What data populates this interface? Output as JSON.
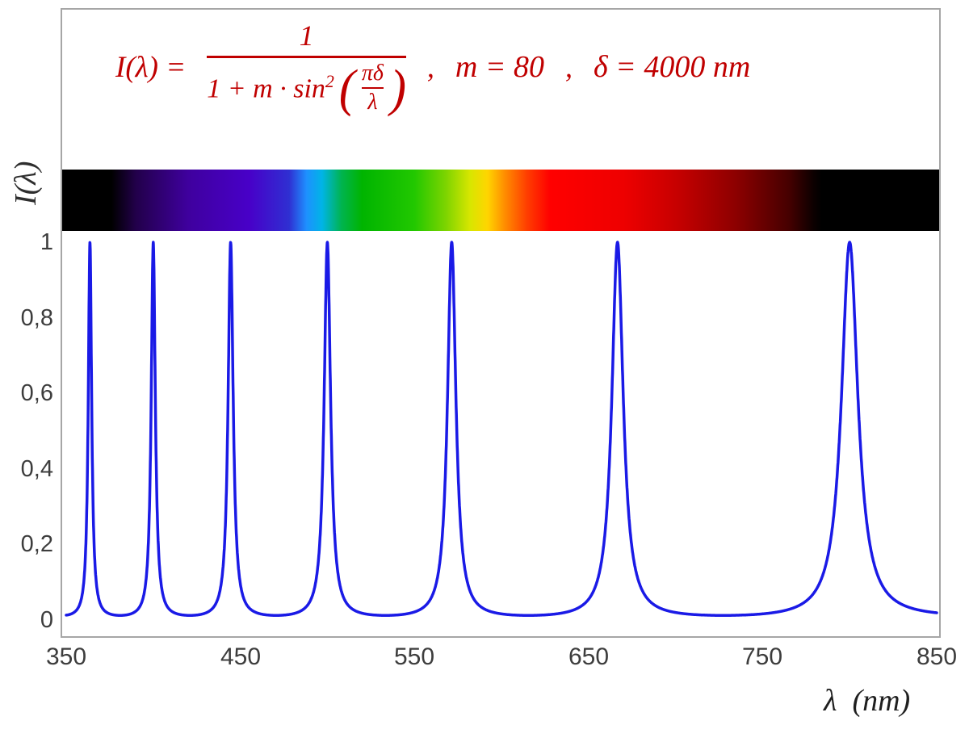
{
  "formula": {
    "lhs": "I(λ) =",
    "numerator": "1",
    "denominator_prefix": "1 + m · sin",
    "denominator_sup": "2",
    "paren_open": "(",
    "inner_numerator": "πδ",
    "inner_denominator": "λ",
    "paren_close": ")",
    "separator_1": ",",
    "m_value": "m = 80",
    "separator_2": ",",
    "delta_value": "δ = 4000 nm",
    "color": "#C00000"
  },
  "axes": {
    "y_label": "I(λ)",
    "x_label": "λ  (nm)"
  },
  "chart_data": {
    "type": "line",
    "function": "I(λ) = 1 / (1 + m · sin²(πδ/λ))",
    "params": {
      "m": 80,
      "delta_nm": 4000
    },
    "x_range": [
      350,
      850
    ],
    "y_range": [
      0,
      1
    ],
    "xlabel": "λ (nm)",
    "ylabel": "I(λ)",
    "x_tick_labels": [
      "350",
      "450",
      "550",
      "650",
      "750",
      "850"
    ],
    "x_tick_values": [
      350,
      450,
      550,
      650,
      750,
      850
    ],
    "y_tick_labels": [
      "1",
      "0,8",
      "0,6",
      "0,4",
      "0,2",
      "0"
    ],
    "y_tick_values": [
      1,
      0.8,
      0.6,
      0.4,
      0.2,
      0
    ],
    "curve_color": "#1a1ae6",
    "frame_border_color": "#a6a6a6",
    "grid": false,
    "legend": false,
    "peak_wavelengths_nm": [
      363.6,
      400.0,
      444.4,
      500.0,
      571.4,
      666.7,
      800.0
    ],
    "peak_intensity": 1,
    "spectrum_stops": [
      [
        350,
        "#000000"
      ],
      [
        376,
        "#000000"
      ],
      [
        390,
        "#22004a"
      ],
      [
        420,
        "#3f009e"
      ],
      [
        455,
        "#4800c8"
      ],
      [
        478,
        "#2f2fd2"
      ],
      [
        488,
        "#1e90ff"
      ],
      [
        497,
        "#00b4e6"
      ],
      [
        508,
        "#00b450"
      ],
      [
        520,
        "#00b400"
      ],
      [
        550,
        "#22c800"
      ],
      [
        568,
        "#7dd400"
      ],
      [
        582,
        "#d8e600"
      ],
      [
        592,
        "#ffd500"
      ],
      [
        602,
        "#ff8c00"
      ],
      [
        615,
        "#ff3c00"
      ],
      [
        628,
        "#ff0000"
      ],
      [
        670,
        "#ee0000"
      ],
      [
        700,
        "#c80000"
      ],
      [
        735,
        "#8c0000"
      ],
      [
        765,
        "#460000"
      ],
      [
        779,
        "#0d0000"
      ],
      [
        784,
        "#000000"
      ],
      [
        850,
        "#000000"
      ]
    ]
  }
}
